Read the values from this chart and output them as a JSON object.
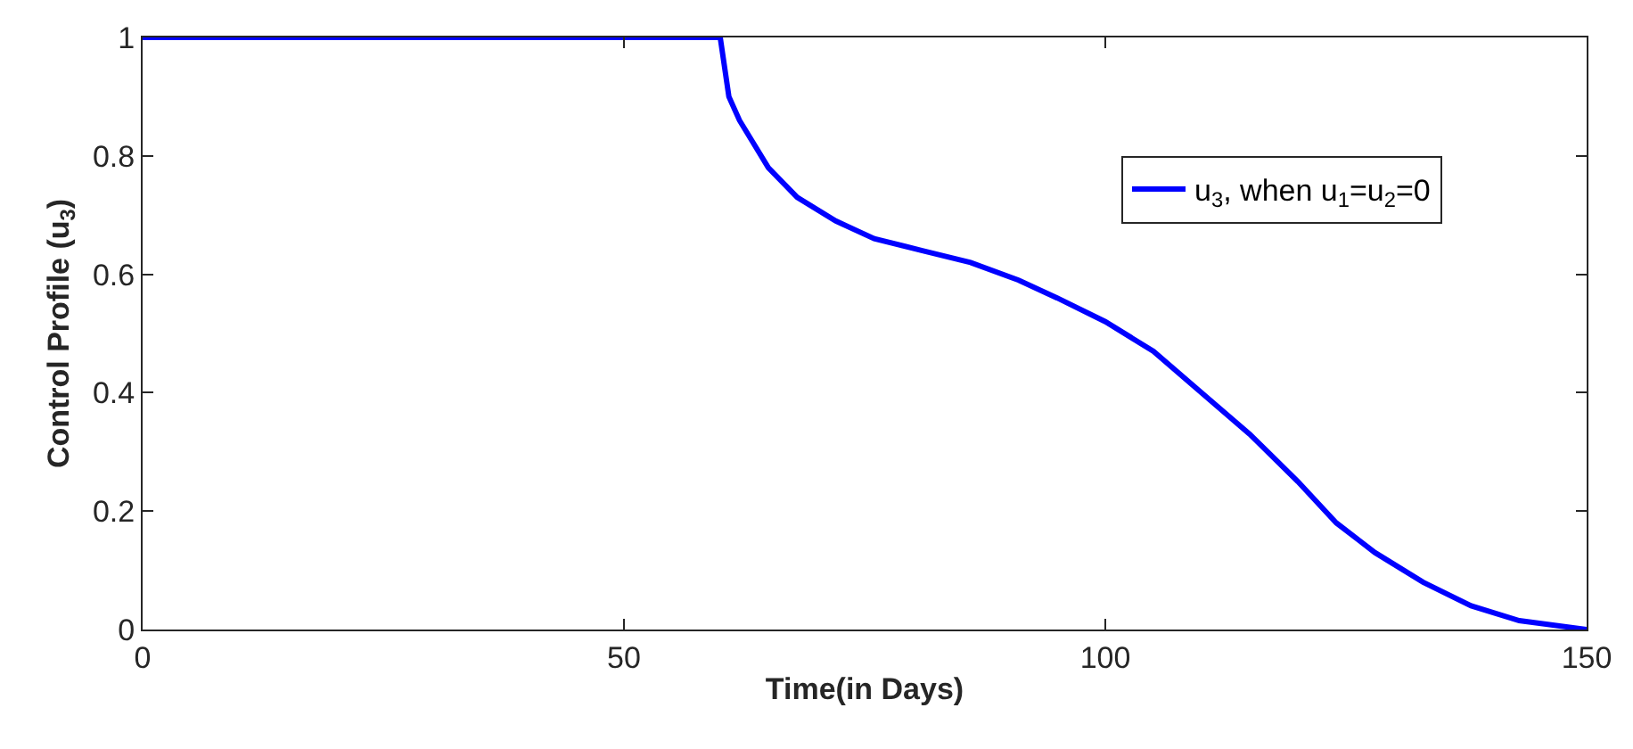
{
  "chart_data": {
    "type": "line",
    "xlabel": "Time(in Days)",
    "ylabel": "Control Profile (u$_{3}$)",
    "x": [
      0,
      60,
      60.9,
      62,
      63.5,
      65,
      68,
      72,
      76,
      81,
      86,
      91,
      95,
      100,
      105,
      110,
      115,
      120,
      124,
      128,
      133,
      138,
      143,
      150
    ],
    "series": [
      {
        "name": "u$_{3}$, when u$_{1}$=u$_{2}$=0",
        "color": "#0000ff",
        "values": [
          1,
          1,
          0.9,
          0.86,
          0.82,
          0.78,
          0.73,
          0.69,
          0.66,
          0.64,
          0.62,
          0.59,
          0.56,
          0.52,
          0.47,
          0.4,
          0.33,
          0.25,
          0.18,
          0.13,
          0.08,
          0.04,
          0.015,
          0
        ]
      }
    ],
    "xlim": [
      0,
      150
    ],
    "xticks": [
      0,
      50,
      100,
      150
    ],
    "ylim": [
      0,
      1
    ],
    "yticks": [
      0,
      0.2,
      0.4,
      0.6,
      0.8,
      1
    ],
    "legend": "top right",
    "marker": "none",
    "line_style": "solid"
  }
}
